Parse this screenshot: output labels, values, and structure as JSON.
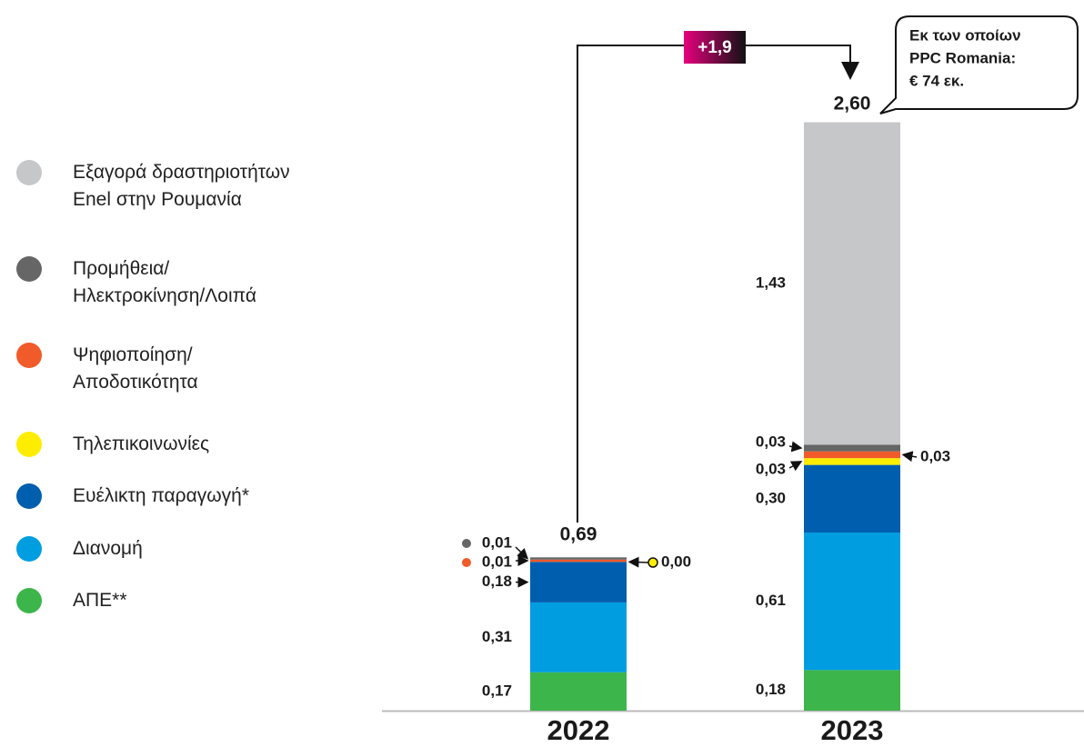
{
  "chart_data": {
    "type": "stacked_bar",
    "categories": [
      "2022",
      "2023"
    ],
    "series": [
      {
        "name": "ΑΠΕ**",
        "color": "#3cb54a",
        "values": [
          0.17,
          0.18
        ],
        "value_labels": [
          "0,17",
          "0,18"
        ]
      },
      {
        "name": "Διανομή",
        "color": "#009ee0",
        "values": [
          0.31,
          0.61
        ],
        "value_labels": [
          "0,31",
          "0,61"
        ]
      },
      {
        "name": "Ευέλικτη παραγωγή*",
        "color": "#005eae",
        "values": [
          0.18,
          0.3
        ],
        "value_labels": [
          "0,18",
          "0,30"
        ]
      },
      {
        "name": "Τηλεπικοινωνίες",
        "color": "#ffed00",
        "values": [
          0.0,
          0.03
        ],
        "value_labels": [
          "0,00",
          "0,03"
        ]
      },
      {
        "name": "Ψηφιοποίηση/\nΑποδοτικότητα",
        "color": "#f15a29",
        "values": [
          0.01,
          0.03
        ],
        "value_labels": [
          "0,01",
          "0,03"
        ]
      },
      {
        "name": "Προμήθεια/\nΗλεκτροκίνηση/Λοιπά",
        "color": "#666666",
        "values": [
          0.01,
          0.03
        ],
        "value_labels": [
          "0,01",
          "0,03"
        ]
      },
      {
        "name": "Εξαγορά δραστηριοτήτων\nEnel στην Ρουμανία",
        "color": "#c6c7c9",
        "values": [
          null,
          1.43
        ],
        "value_labels": [
          null,
          "1,43"
        ]
      }
    ],
    "totals": {
      "values": [
        0.69,
        2.6
      ],
      "value_labels": [
        "0,69",
        "2,60"
      ]
    },
    "delta": {
      "value": 1.9,
      "label": "+1,9"
    },
    "annotation": [
      "Εκ των οποίων",
      "PPC Romania:",
      "€ 74 εκ."
    ],
    "ylim": [
      0,
      2.6
    ]
  }
}
